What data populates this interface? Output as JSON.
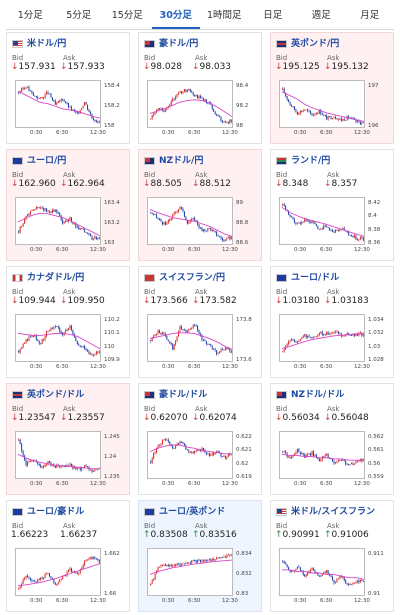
{
  "tabs": [
    {
      "label": "1分足",
      "active": false
    },
    {
      "label": "5分足",
      "active": false
    },
    {
      "label": "15分足",
      "active": false
    },
    {
      "label": "30分足",
      "active": true
    },
    {
      "label": "1時間足",
      "active": false
    },
    {
      "label": "日足",
      "active": false
    },
    {
      "label": "週足",
      "active": false
    },
    {
      "label": "月足",
      "active": false
    }
  ],
  "labels": {
    "bid": "Bid",
    "ask": "Ask"
  },
  "x_ticks": [
    "0:30",
    "6:30",
    "12:30"
  ],
  "colors": {
    "candle_up": "#d62828",
    "candle_down": "#1f3fa8",
    "ma_line": "#d946c7",
    "title": "#1f4aa0",
    "red_bg": "#fff1f1",
    "blue_bg": "#eef5ff"
  },
  "cards": [
    {
      "title": "米ドル/円",
      "flag": "us",
      "bg": "white",
      "bid": "157.931",
      "ask": "157.933",
      "dir": "down",
      "yticks": [
        "158.4",
        "158.2",
        "158"
      ]
    },
    {
      "title": "豪ドル/円",
      "flag": "au",
      "bg": "white",
      "bid": "98.028",
      "ask": "98.033",
      "dir": "down",
      "yticks": [
        "98.4",
        "98.2",
        "98"
      ]
    },
    {
      "title": "英ポンド/円",
      "flag": "gb",
      "bg": "red",
      "bid": "195.125",
      "ask": "195.132",
      "dir": "down",
      "yticks": [
        "197",
        "196"
      ]
    },
    {
      "title": "ユーロ/円",
      "flag": "eu",
      "bg": "red",
      "bid": "162.960",
      "ask": "162.964",
      "dir": "down",
      "yticks": [
        "163.4",
        "163.2",
        "163"
      ]
    },
    {
      "title": "NZドル/円",
      "flag": "nz",
      "bg": "red",
      "bid": "88.505",
      "ask": "88.512",
      "dir": "down",
      "yticks": [
        "89",
        "88.8",
        "88.6"
      ]
    },
    {
      "title": "ランド/円",
      "flag": "za",
      "bg": "white",
      "bid": "8.348",
      "ask": "8.357",
      "dir": "down",
      "yticks": [
        "8.42",
        "8.4",
        "8.38",
        "8.36"
      ]
    },
    {
      "title": "カナダドル/円",
      "flag": "ca",
      "bg": "white",
      "bid": "109.944",
      "ask": "109.950",
      "dir": "down",
      "yticks": [
        "110.2",
        "110.1",
        "110",
        "109.9"
      ]
    },
    {
      "title": "スイスフラン/円",
      "flag": "ch",
      "bg": "white",
      "bid": "173.566",
      "ask": "173.582",
      "dir": "down",
      "yticks": [
        "173.8",
        "173.6"
      ]
    },
    {
      "title": "ユーロ/ドル",
      "flag": "eu",
      "bg": "white",
      "bid": "1.03180",
      "ask": "1.03183",
      "dir": "down",
      "yticks": [
        "1.034",
        "1.032",
        "1.03",
        "1.028"
      ]
    },
    {
      "title": "英ポンド/ドル",
      "flag": "gb",
      "bg": "red",
      "bid": "1.23547",
      "ask": "1.23557",
      "dir": "down",
      "yticks": [
        "1.245",
        "1.24",
        "1.235"
      ]
    },
    {
      "title": "豪ドル/ドル",
      "flag": "au",
      "bg": "white",
      "bid": "0.62070",
      "ask": "0.62074",
      "dir": "down",
      "yticks": [
        "0.622",
        "0.621",
        "0.62",
        "0.619"
      ]
    },
    {
      "title": "NZドル/ドル",
      "flag": "nz",
      "bg": "white",
      "bid": "0.56034",
      "ask": "0.56048",
      "dir": "down",
      "yticks": [
        "0.562",
        "0.561",
        "0.56",
        "0.559"
      ]
    },
    {
      "title": "ユーロ/豪ドル",
      "flag": "eu",
      "bg": "white",
      "bid": "1.66223",
      "ask": "1.66237",
      "dir": "none",
      "yticks": [
        "1.662",
        "1.66"
      ]
    },
    {
      "title": "ユーロ/英ポンド",
      "flag": "eu",
      "bg": "blue",
      "bid": "0.83508",
      "ask": "0.83516",
      "dir": "up",
      "yticks": [
        "0.834",
        "0.832",
        "0.83"
      ]
    },
    {
      "title": "米ドル/スイスフラン",
      "flag": "us",
      "bg": "white",
      "bid": "0.90991",
      "ask": "0.91006",
      "dir": "up",
      "yticks": [
        "0.911",
        "0.91"
      ]
    }
  ],
  "chart_data": [
    {
      "type": "candlestick",
      "ma": [
        158.42,
        158.36,
        158.3,
        158.24,
        158.22,
        158.18,
        158.14,
        158.12,
        158.1,
        158.06,
        158.02,
        157.99
      ],
      "trend": [
        158.4,
        158.5,
        158.35,
        158.3,
        158.4,
        158.2,
        158.3,
        158.15,
        158.05,
        158.25,
        158.0,
        157.93
      ],
      "ylim": [
        157.85,
        158.55
      ]
    },
    {
      "type": "candlestick",
      "ma": [
        98.12,
        98.15,
        98.18,
        98.22,
        98.26,
        98.28,
        98.29,
        98.28,
        98.25,
        98.2,
        98.14,
        98.08
      ],
      "trend": [
        98.05,
        98.2,
        98.15,
        98.3,
        98.38,
        98.42,
        98.35,
        98.3,
        98.25,
        98.1,
        98.0,
        98.03
      ],
      "ylim": [
        97.95,
        98.5
      ]
    },
    {
      "type": "candlestick",
      "ma": [
        196.9,
        196.7,
        196.5,
        196.2,
        196.0,
        195.85,
        195.7,
        195.6,
        195.5,
        195.4,
        195.3,
        195.22
      ],
      "trend": [
        197.0,
        196.2,
        195.7,
        195.9,
        195.6,
        195.8,
        195.4,
        195.5,
        195.3,
        195.45,
        195.2,
        195.13
      ],
      "ylim": [
        194.9,
        197.4
      ]
    },
    {
      "type": "candlestick",
      "ma": [
        163.2,
        163.26,
        163.31,
        163.34,
        163.33,
        163.3,
        163.27,
        163.22,
        163.16,
        163.1,
        163.04,
        162.98
      ],
      "trend": [
        163.05,
        163.3,
        163.4,
        163.45,
        163.35,
        163.4,
        163.2,
        163.25,
        163.1,
        163.05,
        162.95,
        162.96
      ],
      "ylim": [
        162.85,
        163.55
      ]
    },
    {
      "type": "candlestick",
      "ma": [
        88.95,
        88.9,
        88.86,
        88.82,
        88.8,
        88.78,
        88.76,
        88.72,
        88.68,
        88.62,
        88.56,
        88.52
      ],
      "trend": [
        88.9,
        88.8,
        88.7,
        88.85,
        89.0,
        88.75,
        88.8,
        88.6,
        88.65,
        88.55,
        88.45,
        88.51
      ],
      "ylim": [
        88.4,
        89.1
      ]
    },
    {
      "type": "candlestick",
      "ma": [
        8.415,
        8.405,
        8.398,
        8.392,
        8.388,
        8.384,
        8.38,
        8.375,
        8.37,
        8.365,
        8.36,
        8.356
      ],
      "trend": [
        8.42,
        8.395,
        8.38,
        8.39,
        8.385,
        8.37,
        8.378,
        8.365,
        8.372,
        8.36,
        8.352,
        8.35
      ],
      "ylim": [
        8.34,
        8.43
      ]
    },
    {
      "type": "candlestick",
      "ma": [
        110.12,
        110.11,
        110.1,
        110.1,
        110.11,
        110.12,
        110.12,
        110.11,
        110.09,
        110.05,
        110.01,
        109.97
      ],
      "trend": [
        109.95,
        110.05,
        110.1,
        110.02,
        110.15,
        110.2,
        110.12,
        110.18,
        110.0,
        109.98,
        109.9,
        109.94
      ],
      "ylim": [
        109.85,
        110.28
      ]
    },
    {
      "type": "candlestick",
      "ma": [
        173.72,
        173.74,
        173.76,
        173.78,
        173.79,
        173.79,
        173.78,
        173.75,
        173.72,
        173.68,
        173.63,
        173.59
      ],
      "trend": [
        173.7,
        173.8,
        173.75,
        173.6,
        173.85,
        173.8,
        173.9,
        173.7,
        173.65,
        173.55,
        173.6,
        173.57
      ],
      "ylim": [
        173.45,
        173.98
      ]
    },
    {
      "type": "candlestick",
      "ma": [
        1.0295,
        1.0298,
        1.0302,
        1.0306,
        1.0309,
        1.0311,
        1.0313,
        1.0315,
        1.0316,
        1.0317,
        1.0318,
        1.0318
      ],
      "trend": [
        1.029,
        1.031,
        1.0305,
        1.0315,
        1.0312,
        1.032,
        1.0318,
        1.0322,
        1.0316,
        1.0319,
        1.0317,
        1.0318
      ],
      "ylim": [
        1.0275,
        1.0345
      ]
    },
    {
      "type": "candlestick",
      "ma": [
        1.24,
        1.239,
        1.2382,
        1.2376,
        1.2372,
        1.2368,
        1.2366,
        1.2364,
        1.2362,
        1.236,
        1.2358,
        1.2357
      ],
      "trend": [
        1.244,
        1.237,
        1.2385,
        1.236,
        1.2375,
        1.2365,
        1.236,
        1.2368,
        1.2355,
        1.2362,
        1.235,
        1.2355
      ],
      "ylim": [
        1.233,
        1.246
      ]
    },
    {
      "type": "candlestick",
      "ma": [
        0.6209,
        0.6212,
        0.6214,
        0.6215,
        0.6215,
        0.6213,
        0.6212,
        0.621,
        0.6209,
        0.6208,
        0.6207,
        0.6207
      ],
      "trend": [
        0.62,
        0.6215,
        0.622,
        0.6212,
        0.6218,
        0.621,
        0.6208,
        0.6212,
        0.6205,
        0.6208,
        0.6204,
        0.6207
      ],
      "ylim": [
        0.6185,
        0.6225
      ]
    },
    {
      "type": "candlestick",
      "ma": [
        0.5608,
        0.5607,
        0.5607,
        0.5606,
        0.5606,
        0.5605,
        0.5605,
        0.5604,
        0.5604,
        0.5603,
        0.5603,
        0.5603
      ],
      "trend": [
        0.561,
        0.5605,
        0.5612,
        0.5606,
        0.5609,
        0.5603,
        0.5607,
        0.5601,
        0.5604,
        0.5598,
        0.5602,
        0.5603
      ],
      "ylim": [
        0.5588,
        0.5625
      ]
    },
    {
      "type": "candlestick",
      "ma": [
        1.6585,
        1.6586,
        1.6588,
        1.659,
        1.6593,
        1.6596,
        1.66,
        1.6604,
        1.6608,
        1.6612,
        1.6616,
        1.662
      ],
      "trend": [
        1.658,
        1.66,
        1.659,
        1.6595,
        1.6605,
        1.6585,
        1.6598,
        1.661,
        1.6602,
        1.6622,
        1.663,
        1.6622
      ],
      "ylim": [
        1.657,
        1.664
      ]
    },
    {
      "type": "candlestick",
      "ma": [
        0.8322,
        0.8326,
        0.8329,
        0.8332,
        0.8334,
        0.8336,
        0.8338,
        0.8339,
        0.8341,
        0.8342,
        0.8343,
        0.8344
      ],
      "trend": [
        0.8305,
        0.8332,
        0.8336,
        0.8334,
        0.8338,
        0.834,
        0.8342,
        0.8343,
        0.8345,
        0.8346,
        0.8349,
        0.8351
      ],
      "ylim": [
        0.829,
        0.8358
      ]
    },
    {
      "type": "candlestick",
      "ma": [
        0.9106,
        0.9106,
        0.9105,
        0.9105,
        0.9104,
        0.9104,
        0.9103,
        0.9103,
        0.9102,
        0.9101,
        0.9101,
        0.91
      ],
      "trend": [
        0.9112,
        0.9104,
        0.9108,
        0.9102,
        0.9107,
        0.9101,
        0.9105,
        0.9098,
        0.9102,
        0.9096,
        0.9099,
        0.9099
      ],
      "ylim": [
        0.909,
        0.9118
      ]
    }
  ]
}
